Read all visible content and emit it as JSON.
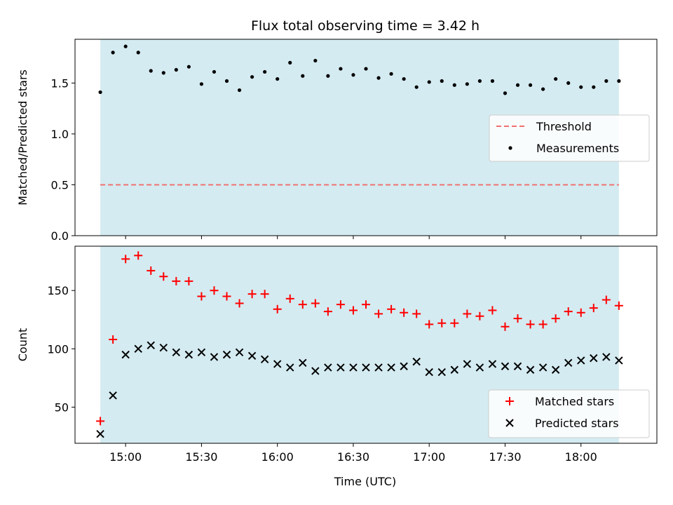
{
  "title": "Flux total observing time = 3.42 h",
  "xlabel": "Time (UTC)",
  "x_tick_labels": [
    "15:00",
    "15:30",
    "16:00",
    "16:30",
    "17:00",
    "17:30",
    "18:00"
  ],
  "colors": {
    "band": "#d4ebf1",
    "threshold": "#f07070",
    "measurements": "#000000",
    "matched": "#ff0000",
    "predicted": "#000000"
  },
  "chart_data": [
    {
      "type": "scatter",
      "panel": "top",
      "ylabel": "Matched/Predicted stars",
      "ylim": [
        0,
        1.93
      ],
      "y_tick_labels": [
        "0.0",
        "0.5",
        "1.0",
        "1.5"
      ],
      "x_range": [
        "14:40",
        "18:30"
      ],
      "shaded_interval": [
        "14:50",
        "18:15"
      ],
      "legend_position": "center-right",
      "threshold": {
        "name": "Threshold",
        "y": 0.5
      },
      "series": [
        {
          "name": "Measurements",
          "x": [
            "14:50",
            "14:55",
            "15:00",
            "15:05",
            "15:10",
            "15:15",
            "15:20",
            "15:25",
            "15:30",
            "15:35",
            "15:40",
            "15:45",
            "15:50",
            "15:55",
            "16:00",
            "16:05",
            "16:10",
            "16:15",
            "16:20",
            "16:25",
            "16:30",
            "16:35",
            "16:40",
            "16:45",
            "16:50",
            "16:55",
            "17:00",
            "17:05",
            "17:10",
            "17:15",
            "17:20",
            "17:25",
            "17:30",
            "17:35",
            "17:40",
            "17:45",
            "17:50",
            "17:55",
            "18:00",
            "18:05",
            "18:10",
            "18:15"
          ],
          "values": [
            1.41,
            1.8,
            1.86,
            1.8,
            1.62,
            1.6,
            1.63,
            1.66,
            1.49,
            1.61,
            1.52,
            1.43,
            1.56,
            1.61,
            1.54,
            1.7,
            1.57,
            1.72,
            1.57,
            1.64,
            1.58,
            1.64,
            1.55,
            1.59,
            1.54,
            1.46,
            1.51,
            1.52,
            1.48,
            1.49,
            1.52,
            1.52,
            1.4,
            1.48,
            1.48,
            1.44,
            1.54,
            1.5,
            1.46,
            1.46,
            1.52,
            1.52
          ]
        }
      ]
    },
    {
      "type": "scatter",
      "panel": "bottom",
      "ylabel": "Count",
      "ylim": [
        19,
        188
      ],
      "y_tick_labels": [
        "50",
        "100",
        "150"
      ],
      "x_range": [
        "14:40",
        "18:30"
      ],
      "shaded_interval": [
        "14:50",
        "18:15"
      ],
      "legend_position": "lower-right",
      "series": [
        {
          "name": "Matched stars",
          "marker": "plus",
          "x": [
            "14:50",
            "14:55",
            "15:00",
            "15:05",
            "15:10",
            "15:15",
            "15:20",
            "15:25",
            "15:30",
            "15:35",
            "15:40",
            "15:45",
            "15:50",
            "15:55",
            "16:00",
            "16:05",
            "16:10",
            "16:15",
            "16:20",
            "16:25",
            "16:30",
            "16:35",
            "16:40",
            "16:45",
            "16:50",
            "16:55",
            "17:00",
            "17:05",
            "17:10",
            "17:15",
            "17:20",
            "17:25",
            "17:30",
            "17:35",
            "17:40",
            "17:45",
            "17:50",
            "17:55",
            "18:00",
            "18:05",
            "18:10",
            "18:15"
          ],
          "values": [
            38,
            108,
            177,
            180,
            167,
            162,
            158,
            158,
            145,
            150,
            145,
            139,
            147,
            147,
            134,
            143,
            138,
            139,
            132,
            138,
            133,
            138,
            130,
            134,
            131,
            130,
            121,
            122,
            122,
            130,
            128,
            133,
            119,
            126,
            121,
            121,
            126,
            132,
            131,
            135,
            142,
            137
          ]
        },
        {
          "name": "Predicted stars",
          "marker": "x",
          "x": [
            "14:50",
            "14:55",
            "15:00",
            "15:05",
            "15:10",
            "15:15",
            "15:20",
            "15:25",
            "15:30",
            "15:35",
            "15:40",
            "15:45",
            "15:50",
            "15:55",
            "16:00",
            "16:05",
            "16:10",
            "16:15",
            "16:20",
            "16:25",
            "16:30",
            "16:35",
            "16:40",
            "16:45",
            "16:50",
            "16:55",
            "17:00",
            "17:05",
            "17:10",
            "17:15",
            "17:20",
            "17:25",
            "17:30",
            "17:35",
            "17:40",
            "17:45",
            "17:50",
            "17:55",
            "18:00",
            "18:05",
            "18:10",
            "18:15"
          ],
          "values": [
            27,
            60,
            95,
            100,
            103,
            101,
            97,
            95,
            97,
            93,
            95,
            97,
            94,
            91,
            87,
            84,
            88,
            81,
            84,
            84,
            84,
            84,
            84,
            84,
            85,
            89,
            80,
            80,
            82,
            87,
            84,
            87,
            85,
            85,
            82,
            84,
            82,
            88,
            90,
            92,
            93,
            90
          ]
        }
      ]
    }
  ]
}
